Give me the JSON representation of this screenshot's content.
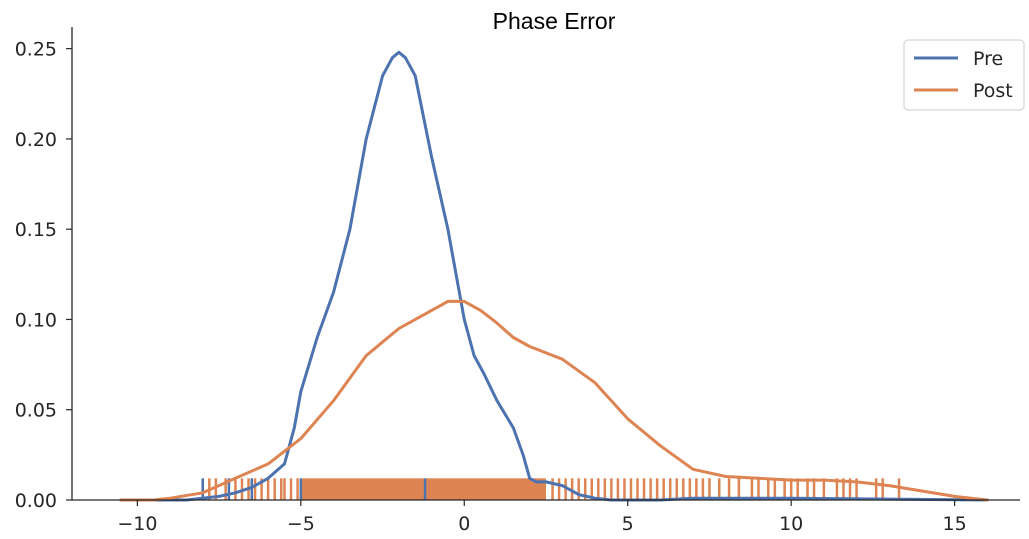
{
  "chart_data": {
    "type": "line",
    "title": "Phase Error",
    "xlabel": "",
    "ylabel": "",
    "xlim": [
      -12,
      17
    ],
    "ylim": [
      0,
      0.262
    ],
    "x_ticks": [
      -10,
      -5,
      0,
      5,
      10,
      15
    ],
    "x_tick_labels": [
      "−10",
      "−5",
      "0",
      "5",
      "10",
      "15"
    ],
    "y_ticks": [
      0.0,
      0.05,
      0.1,
      0.15,
      0.2,
      0.25
    ],
    "y_tick_labels": [
      "0.00",
      "0.05",
      "0.10",
      "0.15",
      "0.20",
      "0.25"
    ],
    "grid": false,
    "legend_position": "top-right",
    "series": [
      {
        "name": "Pre",
        "color": "#4c72b0",
        "x": [
          -10.5,
          -8.5,
          -7.5,
          -7.0,
          -6.5,
          -6.0,
          -5.5,
          -5.2,
          -5.0,
          -4.5,
          -4.0,
          -3.5,
          -3.0,
          -2.5,
          -2.2,
          -2.0,
          -1.8,
          -1.5,
          -1.0,
          -0.5,
          -0.2,
          0.0,
          0.3,
          0.6,
          1.0,
          1.5,
          1.8,
          2.0,
          2.2,
          2.5,
          3.0,
          3.5,
          4.0,
          4.5,
          5.0,
          6.0,
          7.0,
          10.0,
          16.0
        ],
        "y": [
          0.0,
          0.0,
          0.002,
          0.004,
          0.007,
          0.012,
          0.02,
          0.04,
          0.06,
          0.09,
          0.115,
          0.15,
          0.2,
          0.235,
          0.245,
          0.248,
          0.245,
          0.235,
          0.19,
          0.15,
          0.12,
          0.1,
          0.08,
          0.07,
          0.055,
          0.04,
          0.025,
          0.012,
          0.01,
          0.01,
          0.008,
          0.003,
          0.001,
          0.0,
          0.0,
          0.0,
          0.001,
          0.001,
          0.0
        ]
      },
      {
        "name": "Post",
        "color": "#dd8452",
        "x": [
          -10.5,
          -9.5,
          -9.0,
          -8.0,
          -7.0,
          -6.0,
          -5.0,
          -4.0,
          -3.0,
          -2.0,
          -1.0,
          -0.5,
          0.0,
          0.5,
          1.0,
          1.5,
          2.0,
          3.0,
          4.0,
          5.0,
          6.0,
          7.0,
          8.0,
          9.0,
          10.0,
          11.0,
          12.0,
          13.0,
          14.0,
          15.0,
          16.0
        ],
        "y": [
          0.0,
          0.0,
          0.001,
          0.004,
          0.012,
          0.02,
          0.034,
          0.055,
          0.08,
          0.095,
          0.105,
          0.11,
          0.11,
          0.105,
          0.098,
          0.09,
          0.085,
          0.078,
          0.065,
          0.045,
          0.03,
          0.017,
          0.013,
          0.012,
          0.011,
          0.011,
          0.01,
          0.008,
          0.005,
          0.002,
          0.0
        ]
      }
    ],
    "rug": [
      {
        "series": "Post",
        "color": "#dd8452",
        "height": 0.012,
        "dense_range": [
          -5,
          2.5
        ],
        "x": [
          -7.8,
          -7.6,
          -7.3,
          -7.0,
          -6.8,
          -6.6,
          -6.4,
          -6.2,
          -6.0,
          -5.8,
          -5.6,
          -5.5,
          -5.3,
          -5.1,
          2.7,
          2.9,
          3.1,
          3.3,
          3.5,
          3.7,
          3.9,
          4.1,
          4.3,
          4.5,
          4.7,
          4.9,
          5.1,
          5.3,
          5.5,
          5.7,
          5.9,
          6.1,
          6.3,
          6.5,
          6.7,
          6.9,
          7.1,
          7.3,
          7.5,
          7.8,
          8.1,
          8.4,
          8.8,
          9.0,
          9.3,
          9.5,
          9.8,
          10.0,
          10.2,
          10.5,
          10.7,
          11.0,
          11.4,
          11.6,
          11.8,
          12.0,
          12.6,
          12.8,
          13.3
        ]
      },
      {
        "series": "Pre",
        "color": "#4c72b0",
        "height": 0.012,
        "x": [
          -8.0,
          -7.2,
          -6.5,
          -5.0,
          -1.2
        ]
      }
    ]
  }
}
